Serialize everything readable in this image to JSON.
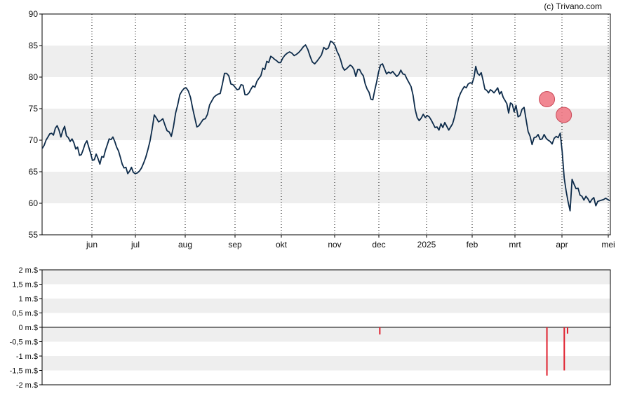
{
  "credit": "(c) Trivano.com",
  "colors": {
    "price_line": "#0d2b4a",
    "band": "#eeeeee",
    "marker_fill": "#f07a86",
    "marker_stroke": "#c94a58",
    "volume_bar": "#e0202e"
  },
  "chart_data": [
    {
      "type": "line",
      "ylim": [
        55,
        90
      ],
      "y_ticks": [
        "55",
        "60",
        "65",
        "70",
        "75",
        "80",
        "85",
        "90"
      ],
      "x_ticks": [
        "jun",
        "jul",
        "aug",
        "sep",
        "okt",
        "nov",
        "dec",
        "2025",
        "feb",
        "mrt",
        "apr",
        "mei"
      ],
      "grid": "alternating horizontal bands, dotted vertical lines at month starts",
      "series": [
        {
          "values": [
            68.7,
            69.2,
            70.0,
            70.5,
            71.0,
            71.1,
            70.8,
            71.9,
            72.3,
            71.6,
            70.5,
            71.5,
            72.2,
            70.7,
            70.4,
            69.8,
            70.2,
            69.6,
            68.6,
            68.9,
            67.6,
            67.7,
            68.5,
            69.4,
            69.9,
            68.9,
            67.9,
            66.8,
            66.9,
            67.8,
            67.1,
            66.2,
            67.4,
            67.3,
            68.4,
            69.3,
            70.2,
            70.1,
            70.5,
            69.8,
            68.9,
            68.3,
            67.3,
            66.2,
            65.6,
            65.7,
            64.7,
            65.1,
            65.7,
            64.9,
            64.7,
            64.8,
            65.1,
            65.6,
            66.4,
            67.3,
            68.5,
            69.9,
            71.8,
            74.0,
            73.5,
            72.9,
            73.1,
            73.4,
            72.4,
            71.5,
            71.3,
            70.6,
            72.1,
            74.3,
            75.6,
            77.2,
            77.8,
            78.2,
            78.3,
            77.8,
            76.8,
            75.1,
            73.6,
            72.1,
            72.3,
            72.8,
            73.3,
            73.4,
            74.1,
            75.6,
            76.2,
            76.8,
            77.1,
            77.3,
            77.4,
            78.9,
            80.6,
            80.6,
            80.2,
            78.9,
            78.8,
            78.4,
            78.0,
            78.1,
            78.8,
            78.7,
            77.2,
            77.2,
            77.5,
            78.1,
            78.6,
            78.4,
            79.3,
            79.8,
            80.2,
            81.4,
            81.2,
            82.5,
            82.3,
            83.3,
            83.1,
            82.8,
            82.6,
            82.3,
            82.3,
            83.0,
            83.5,
            83.8,
            84.0,
            83.8,
            83.4,
            83.6,
            83.9,
            84.3,
            84.8,
            85.1,
            84.4,
            83.3,
            82.4,
            82.1,
            82.5,
            83.0,
            83.5,
            84.7,
            84.4,
            84.6,
            85.7,
            85.5,
            85.0,
            84.1,
            83.5,
            82.7,
            81.6,
            81.1,
            81.3,
            81.6,
            81.9,
            81.7,
            81.2,
            80.1,
            81.2,
            81.2,
            80.6,
            80.2,
            78.9,
            78.1,
            77.6,
            76.5,
            76.4,
            77.9,
            79.2,
            80.7,
            81.9,
            82.1,
            81.3,
            80.5,
            80.8,
            80.6,
            80.9,
            80.5,
            80.1,
            80.4,
            81.1,
            80.5,
            80.4,
            79.7,
            79.1,
            78.5,
            77.1,
            74.9,
            73.6,
            73.1,
            73.5,
            74.1,
            73.6,
            73.9,
            73.7,
            73.2,
            72.6,
            72.0,
            72.1,
            71.6,
            72.6,
            72.0,
            72.8,
            72.2,
            71.6,
            72.1,
            72.6,
            73.7,
            75.1,
            76.6,
            77.4,
            78.0,
            78.5,
            78.3,
            78.9,
            79.1,
            79.0,
            79.9,
            81.7,
            80.6,
            80.3,
            80.7,
            79.5,
            78.1,
            77.9,
            77.5,
            78.0,
            77.8,
            77.5,
            77.9,
            78.3,
            77.3,
            77.7,
            76.8,
            76.3,
            75.8,
            74.3,
            75.9,
            75.7,
            74.5,
            75.5,
            73.7,
            73.9,
            74.9,
            75.2,
            73.3,
            71.4,
            70.6,
            69.3,
            70.4,
            70.5,
            70.9,
            70.1,
            70.2,
            70.9,
            70.3,
            70.0,
            69.8,
            69.4,
            70.3,
            70.6,
            70.4,
            71.1,
            68.2,
            64.0,
            61.9,
            60.2,
            58.8,
            63.8,
            63.0,
            62.3,
            62.4,
            61.3,
            61.1,
            60.5,
            61.1,
            60.7,
            60.1,
            60.6,
            60.9,
            59.6,
            60.3,
            60.4,
            60.5,
            60.6,
            60.8,
            60.6,
            60.4
          ]
        }
      ],
      "markers": [
        {
          "month": 9.68,
          "value": 76.5
        },
        {
          "month": 10.04,
          "value": 74.0
        }
      ]
    },
    {
      "type": "bar",
      "ylim": [
        -2,
        2
      ],
      "y_ticks": [
        "-2 m.$",
        "-1,5 m.$",
        "-1 m.$",
        "-0,5 m.$",
        "0 m.$",
        "0,5 m.$",
        "1 m.$",
        "1,5 m.$",
        "2 m.$"
      ],
      "bars": [
        {
          "month": 6.02,
          "value": -0.25
        },
        {
          "month": 9.68,
          "value": -1.68
        },
        {
          "month": 10.05,
          "value": -1.5
        },
        {
          "month": 10.12,
          "value": -0.22
        }
      ]
    }
  ]
}
